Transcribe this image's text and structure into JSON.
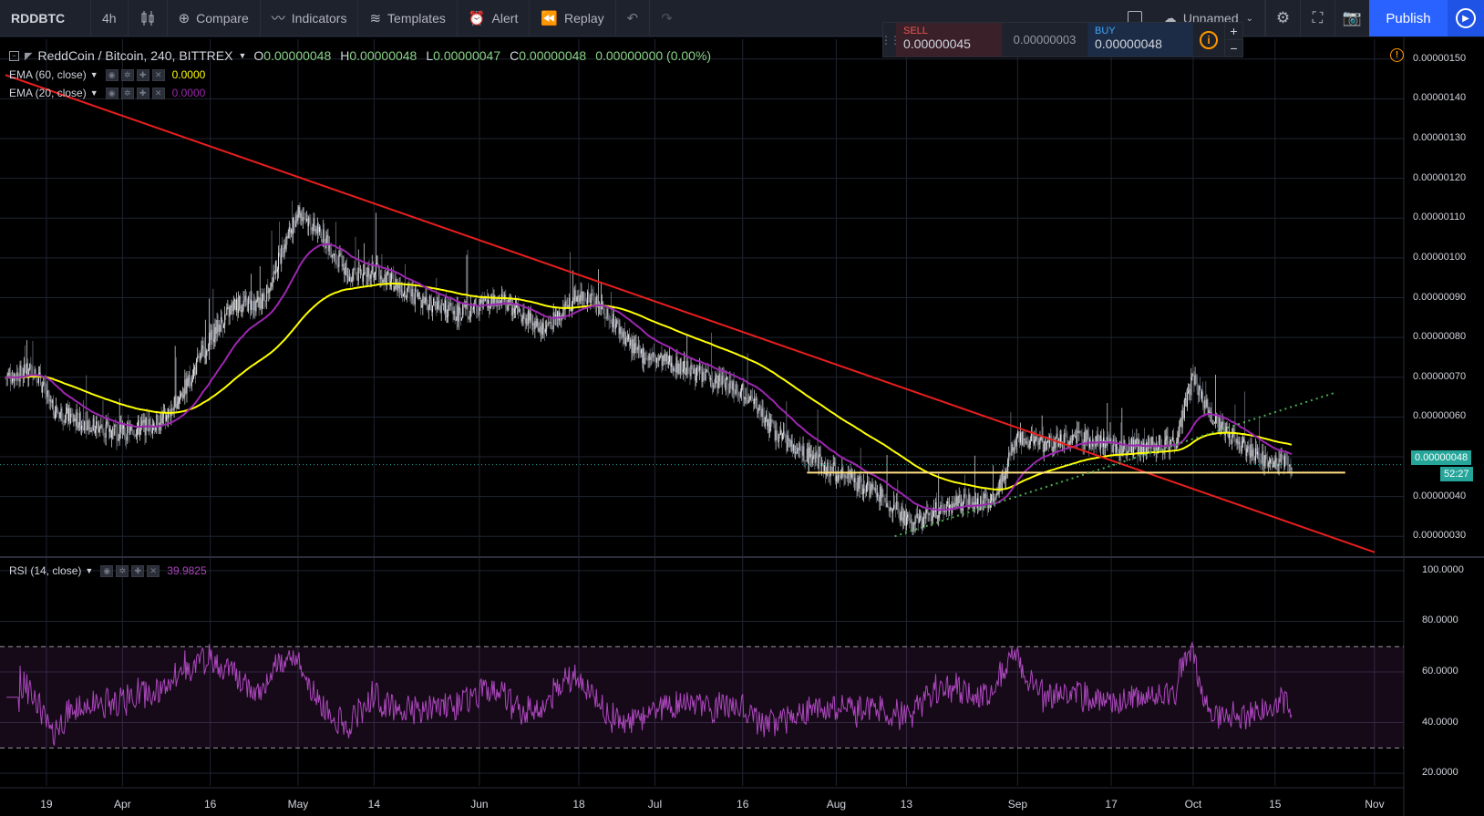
{
  "toolbar": {
    "symbol": "RDDBTC",
    "interval": "4h",
    "chart_type_icon": "candles-icon",
    "compare": "Compare",
    "indicators": "Indicators",
    "templates": "Templates",
    "alert": "Alert",
    "replay": "Replay",
    "layout_name": "Unnamed",
    "publish": "Publish"
  },
  "trade": {
    "sell_label": "SELL",
    "sell_price": "0.00000045",
    "spread": "0.00000003",
    "buy_label": "BUY",
    "buy_price": "0.00000048",
    "info_icon": "i",
    "plus": "+",
    "minus": "−"
  },
  "legend": {
    "title": "ReddCoin / Bitcoin, 240, BITTREX",
    "o_key": "O",
    "o_val": "0.00000048",
    "h_key": "H",
    "h_val": "0.00000048",
    "l_key": "L",
    "l_val": "0.00000047",
    "c_key": "C",
    "c_val": "0.00000048",
    "change": "0.00000000 (0.00%)",
    "ema60_label": "EMA (60, close)",
    "ema60_value": "0.0000",
    "ema20_label": "EMA (20, close)",
    "ema20_value": "0.0000",
    "rsi_label": "RSI (14, close)",
    "rsi_value": "39.9825",
    "alert_icon": "!"
  },
  "price_axis": [
    "0.00000150",
    "0.00000140",
    "0.00000130",
    "0.00000120",
    "0.00000110",
    "0.00000100",
    "0.00000090",
    "0.00000080",
    "0.00000070",
    "0.00000060",
    "0.00000050",
    "0.00000040",
    "0.00000030"
  ],
  "rsi_axis": [
    "100.0000",
    "80.0000",
    "60.0000",
    "40.0000",
    "20.0000"
  ],
  "last_price_tag": "0.00000048",
  "countdown_tag": "52:27",
  "time_axis": [
    "19",
    "Apr",
    "16",
    "May",
    "14",
    "Jun",
    "18",
    "Jul",
    "16",
    "Aug",
    "13",
    "Sep",
    "17",
    "Oct",
    "15",
    "Nov"
  ],
  "colors": {
    "ema60": "#ffff00",
    "ema20": "#9c27b0",
    "trendline": "#e91e1e",
    "support": "#ffe082",
    "uptrend": "#4caf50",
    "rsi": "#ab47bc",
    "last_price": "#26a69a"
  },
  "chart_data": {
    "type": "candlestick",
    "symbol": "ReddCoin / Bitcoin",
    "ylim": [
      2.5e-07,
      1.55e-06
    ],
    "close_path": [
      [
        "Mar 12",
        7e-07
      ],
      [
        "Mar 17",
        7.2e-07
      ],
      [
        "Mar 20",
        6.2e-07
      ],
      [
        "Mar 26",
        5.8e-07
      ],
      [
        "Apr 1",
        5.6e-07
      ],
      [
        "Apr 8",
        5.9e-07
      ],
      [
        "Apr 12",
        6.8e-07
      ],
      [
        "Apr 16",
        8e-07
      ],
      [
        "Apr 20",
        8.8e-07
      ],
      [
        "Apr 25",
        8.9e-07
      ],
      [
        "May 1",
        1.12e-06
      ],
      [
        "May 5",
        1.06e-06
      ],
      [
        "May 10",
        9.5e-07
      ],
      [
        "May 14",
        9.7e-07
      ],
      [
        "May 20",
        9.1e-07
      ],
      [
        "May 28",
        8.6e-07
      ],
      [
        "Jun 5",
        8.9e-07
      ],
      [
        "Jun 12",
        8.2e-07
      ],
      [
        "Jun 18",
        9.1e-07
      ],
      [
        "Jun 22",
        8.8e-07
      ],
      [
        "Jun 28",
        7.6e-07
      ],
      [
        "Jul 5",
        7.3e-07
      ],
      [
        "Jul 10",
        7e-07
      ],
      [
        "Jul 16",
        6.7e-07
      ],
      [
        "Jul 22",
        5.5e-07
      ],
      [
        "Aug 1",
        4.6e-07
      ],
      [
        "Aug 9",
        4e-07
      ],
      [
        "Aug 14",
        3.3e-07
      ],
      [
        "Aug 20",
        3.8e-07
      ],
      [
        "Aug 28",
        3.9e-07
      ],
      [
        "Sep 1",
        5.5e-07
      ],
      [
        "Sep 6",
        5.3e-07
      ],
      [
        "Sep 12",
        5.5e-07
      ],
      [
        "Sep 19",
        5.2e-07
      ],
      [
        "Sep 28",
        5.4e-07
      ],
      [
        "Oct 1",
        7e-07
      ],
      [
        "Oct 4",
        6e-07
      ],
      [
        "Oct 10",
        5.2e-07
      ],
      [
        "Oct 14",
        4.9e-07
      ],
      [
        "Oct 18",
        4.8e-07
      ]
    ],
    "rsi": {
      "ylim": [
        15,
        105
      ],
      "overbought": 70,
      "oversold": 30,
      "last": 39.9825
    },
    "drawings": [
      {
        "type": "trendline",
        "from": [
          "Mar 12",
          1.46e-06
        ],
        "to": [
          "Nov 1",
          2.6e-07
        ]
      },
      {
        "type": "horizontal",
        "value": 4.6e-07,
        "from": "Jul 27",
        "to": "Oct 27"
      },
      {
        "type": "trendline-dotted",
        "from": [
          "Aug 11",
          3e-07
        ],
        "to": [
          "Oct 25",
          6.6e-07
        ]
      }
    ]
  }
}
